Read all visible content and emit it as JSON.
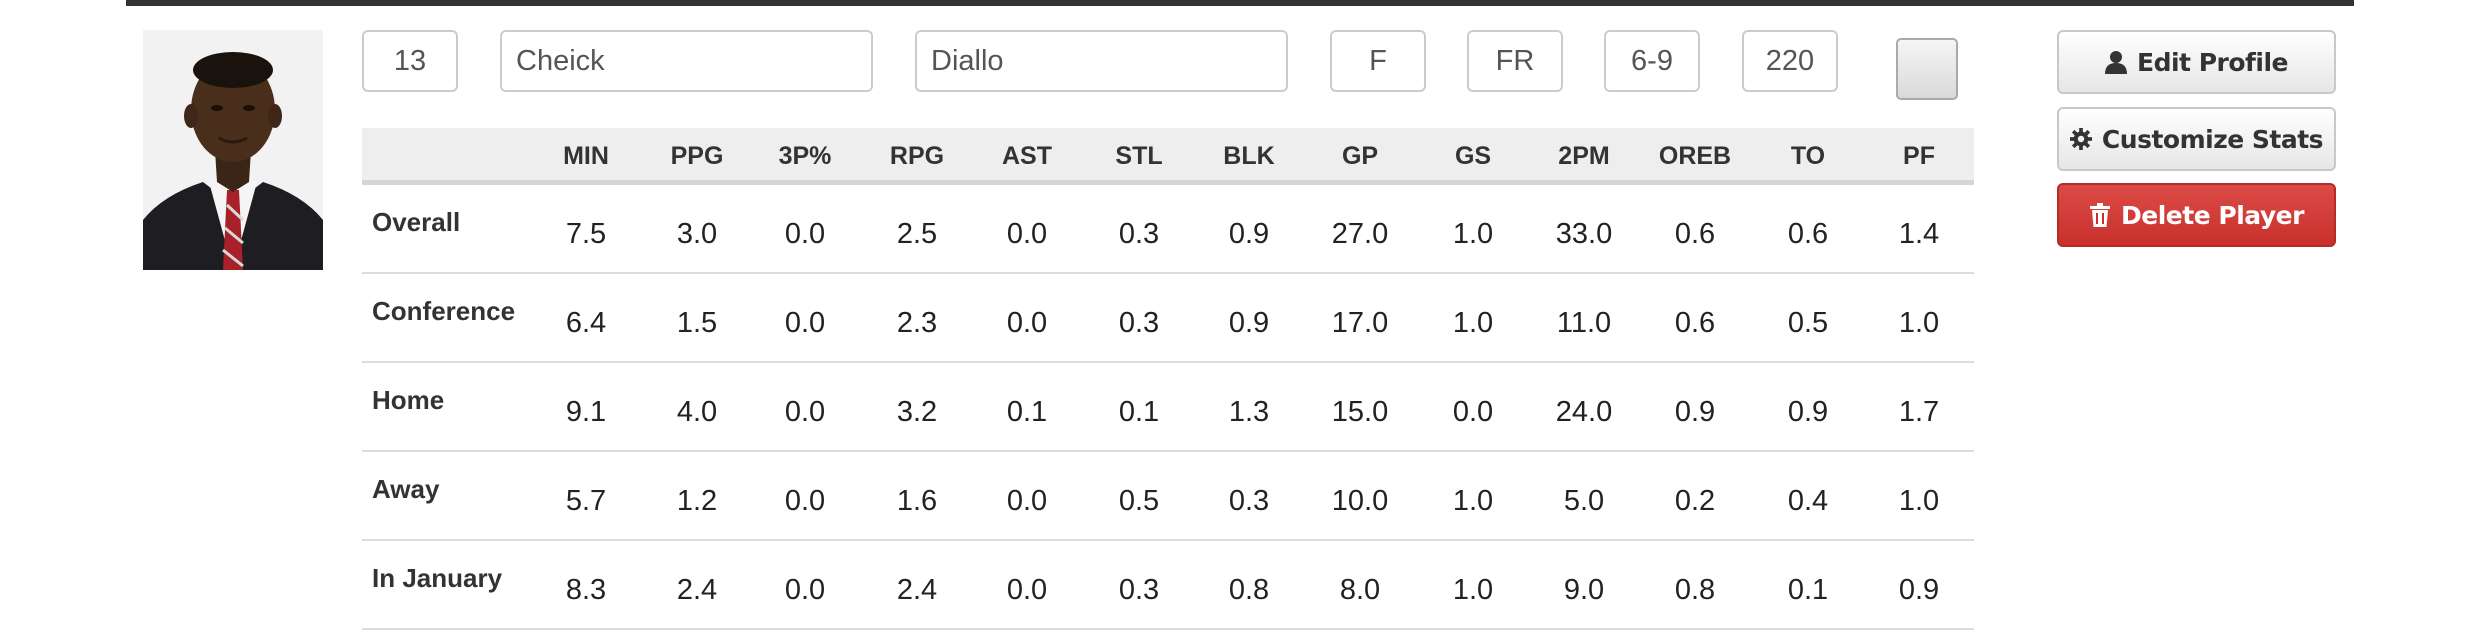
{
  "player": {
    "number": "13",
    "first_name": "Cheick",
    "last_name": "Diallo",
    "position": "F",
    "year": "FR",
    "height": "6-9",
    "weight": "220"
  },
  "actions": {
    "edit_profile": "Edit Profile",
    "customize_stats": "Customize Stats",
    "delete_player": "Delete Player"
  },
  "icons": {
    "edit_profile": "user-icon",
    "customize_stats": "gear-icon",
    "delete_player": "trash-icon"
  },
  "colors": {
    "danger": "#d9534f",
    "header_bg": "#eeeeee",
    "rule": "#333333"
  },
  "stats": {
    "columns": [
      "MIN",
      "PPG",
      "3P%",
      "RPG",
      "AST",
      "STL",
      "BLK",
      "GP",
      "GS",
      "2PM",
      "OREB",
      "TO",
      "PF"
    ],
    "rows": [
      {
        "label": "Overall",
        "values": [
          "7.5",
          "3.0",
          "0.0",
          "2.5",
          "0.0",
          "0.3",
          "0.9",
          "27.0",
          "1.0",
          "33.0",
          "0.6",
          "0.6",
          "1.4"
        ]
      },
      {
        "label": "Conference",
        "values": [
          "6.4",
          "1.5",
          "0.0",
          "2.3",
          "0.0",
          "0.3",
          "0.9",
          "17.0",
          "1.0",
          "11.0",
          "0.6",
          "0.5",
          "1.0"
        ]
      },
      {
        "label": "Home",
        "values": [
          "9.1",
          "4.0",
          "0.0",
          "3.2",
          "0.1",
          "0.1",
          "1.3",
          "15.0",
          "0.0",
          "24.0",
          "0.9",
          "0.9",
          "1.7"
        ]
      },
      {
        "label": "Away",
        "values": [
          "5.7",
          "1.2",
          "0.0",
          "1.6",
          "0.0",
          "0.5",
          "0.3",
          "10.0",
          "1.0",
          "5.0",
          "0.2",
          "0.4",
          "1.0"
        ]
      },
      {
        "label": "In January",
        "values": [
          "8.3",
          "2.4",
          "0.0",
          "2.4",
          "0.0",
          "0.3",
          "0.8",
          "8.0",
          "1.0",
          "9.0",
          "0.8",
          "0.1",
          "0.9"
        ]
      }
    ]
  }
}
